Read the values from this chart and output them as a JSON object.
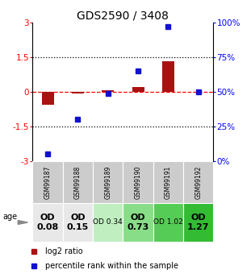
{
  "title": "GDS2590 / 3408",
  "samples": [
    "GSM99187",
    "GSM99188",
    "GSM99189",
    "GSM99190",
    "GSM99191",
    "GSM99192"
  ],
  "log2_ratio": [
    -0.55,
    -0.08,
    0.05,
    0.2,
    1.3,
    0.0
  ],
  "percentile_rank_pct": [
    5,
    30,
    49,
    65,
    97,
    50
  ],
  "bar_color": "#aa1111",
  "dot_color": "#1111cc",
  "ylim": [
    -3,
    3
  ],
  "y2lim": [
    0,
    100
  ],
  "yticks": [
    -3,
    -1.5,
    0,
    1.5,
    3
  ],
  "ytick_labels": [
    "-3",
    "-1.5",
    "0",
    "1.5",
    "3"
  ],
  "y2ticks": [
    0,
    25,
    50,
    75,
    100
  ],
  "y2ticklabels": [
    "0%",
    "25%",
    "50%",
    "75%",
    "100%"
  ],
  "od_values": [
    "0.08",
    "0.15",
    "0.34",
    "0.73",
    "1.02",
    "1.27"
  ],
  "od_colors": [
    "#e8e8e8",
    "#e8e8e8",
    "#c0eec0",
    "#88dd88",
    "#55cc55",
    "#33bb33"
  ],
  "od_fontsize": [
    8,
    8,
    6.5,
    8,
    6.5,
    8
  ],
  "od_bold": [
    true,
    true,
    false,
    true,
    false,
    true
  ],
  "sample_bg_color": "#cccccc",
  "legend_bar_label": "log2 ratio",
  "legend_dot_label": "percentile rank within the sample",
  "age_label": "age"
}
